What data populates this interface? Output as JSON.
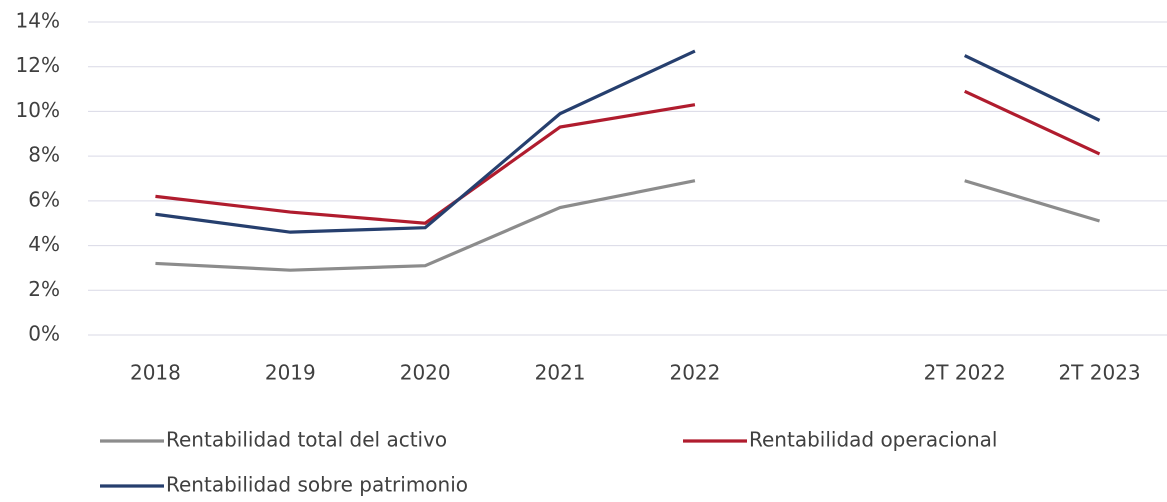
{
  "chart_data": {
    "type": "line",
    "categories": [
      "2018",
      "2019",
      "2020",
      "2021",
      "2022",
      null,
      "2T 2022",
      "2T 2023"
    ],
    "series": [
      {
        "name": "Rentabilidad total del activo",
        "color": "#8c8c8c",
        "values": [
          3.2,
          2.9,
          3.1,
          5.7,
          6.9,
          null,
          6.9,
          5.1
        ]
      },
      {
        "name": "Rentabilidad operacional",
        "color": "#b01c2e",
        "values": [
          6.2,
          5.5,
          5.0,
          9.3,
          10.3,
          null,
          10.9,
          8.1
        ]
      },
      {
        "name": "Rentabilidad sobre patrimonio",
        "color": "#263f6e",
        "values": [
          5.4,
          4.6,
          4.8,
          9.9,
          12.7,
          null,
          12.5,
          9.6
        ]
      }
    ],
    "ylim": [
      0,
      14
    ],
    "yticks": [
      {
        "value": 0,
        "label": "0%"
      },
      {
        "value": 2,
        "label": "2%"
      },
      {
        "value": 4,
        "label": "4%"
      },
      {
        "value": 6,
        "label": "6%"
      },
      {
        "value": 8,
        "label": "8%"
      },
      {
        "value": 10,
        "label": "10%"
      },
      {
        "value": 12,
        "label": "12%"
      },
      {
        "value": 14,
        "label": "14%"
      }
    ],
    "grid": true
  }
}
